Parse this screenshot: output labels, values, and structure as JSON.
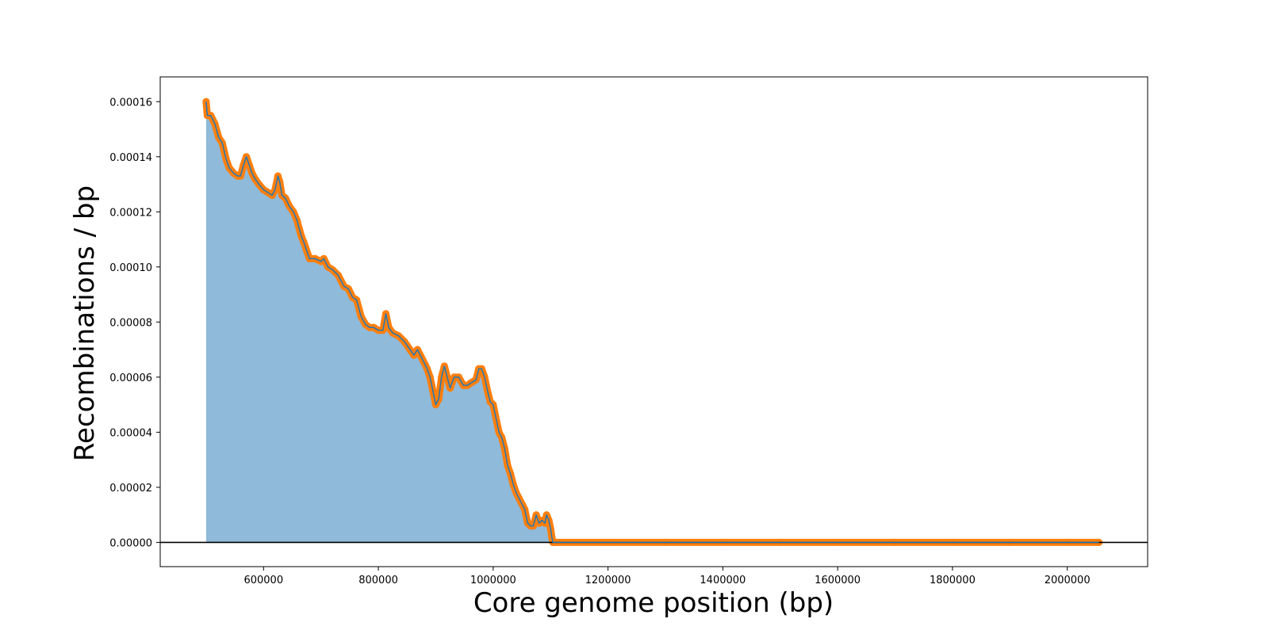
{
  "chart_data": {
    "type": "area",
    "title": "",
    "xlabel": "Core genome position (bp)",
    "ylabel": "Recombinations / bp",
    "xlim": [
      420000,
      2140000
    ],
    "ylim": [
      -8.8e-06,
      0.000169
    ],
    "grid": false,
    "legend": "none",
    "x_ticks": [
      600000,
      800000,
      1000000,
      1200000,
      1400000,
      1600000,
      1800000,
      2000000
    ],
    "x_tick_labels": [
      "600000",
      "800000",
      "1000000",
      "1200000",
      "1400000",
      "1600000",
      "1800000",
      "2000000"
    ],
    "y_ticks": [
      0,
      2e-05,
      4e-05,
      6e-05,
      8e-05,
      0.0001,
      0.00012,
      0.00014,
      0.00016
    ],
    "y_tick_labels": [
      "0.00000",
      "0.00002",
      "0.00004",
      "0.00006",
      "0.00008",
      "0.00010",
      "0.00012",
      "0.00014",
      "0.00016"
    ],
    "series": [
      {
        "x": [
          500000,
          502000,
          508000,
          515000,
          522000,
          528000,
          535000,
          540000,
          548000,
          555000,
          560000,
          565000,
          570000,
          575000,
          580000,
          585000,
          592000,
          600000,
          608000,
          615000,
          620000,
          625000,
          628000,
          632000,
          638000,
          645000,
          652000,
          658000,
          662000,
          666000,
          670000,
          675000,
          680000,
          690000,
          700000,
          705000,
          712000,
          720000,
          730000,
          740000,
          748000,
          755000,
          762000,
          770000,
          778000,
          785000,
          792000,
          800000,
          808000,
          813000,
          818000,
          825000,
          835000,
          845000,
          855000,
          862000,
          868000,
          873000,
          878000,
          885000,
          890000,
          895000,
          900000,
          905000,
          910000,
          915000,
          920000,
          925000,
          932000,
          940000,
          948000,
          955000,
          962000,
          970000,
          975000,
          980000,
          985000,
          990000,
          995000,
          1000000,
          1005000,
          1010000,
          1015000,
          1020000,
          1025000,
          1030000,
          1035000,
          1040000,
          1045000,
          1050000,
          1055000,
          1060000,
          1065000,
          1070000,
          1075000,
          1080000,
          1085000,
          1090000,
          1093000,
          1097000,
          1100000,
          1102000,
          1104000,
          1106000,
          1110000,
          1200000,
          1300000,
          1400000,
          1500000,
          1600000,
          1700000,
          1800000,
          1900000,
          2000000,
          2055000
        ],
        "values": [
          0.00016,
          0.000155,
          0.000155,
          0.000152,
          0.000147,
          0.000145,
          0.000139,
          0.000136,
          0.000134,
          0.000133,
          0.000133,
          0.000137,
          0.00014,
          0.000137,
          0.000134,
          0.000132,
          0.00013,
          0.000128,
          0.000127,
          0.000126,
          0.000128,
          0.000133,
          0.000131,
          0.000126,
          0.000125,
          0.000122,
          0.00012,
          0.000117,
          0.000114,
          0.000111,
          0.000109,
          0.000106,
          0.000103,
          0.000103,
          0.000102,
          0.000103,
          0.0001,
          9.9e-05,
          9.7e-05,
          9.3e-05,
          9.2e-05,
          8.9e-05,
          8.8e-05,
          8.2e-05,
          7.9e-05,
          7.8e-05,
          7.8e-05,
          7.7e-05,
          7.7e-05,
          8.3e-05,
          7.8e-05,
          7.6e-05,
          7.5e-05,
          7.3e-05,
          7e-05,
          6.8e-05,
          7e-05,
          6.8e-05,
          6.6e-05,
          6.3e-05,
          6e-05,
          5.5e-05,
          5e-05,
          5.2e-05,
          6e-05,
          6.4e-05,
          6e-05,
          5.6e-05,
          6e-05,
          6e-05,
          5.7e-05,
          5.7e-05,
          5.8e-05,
          5.9e-05,
          6.3e-05,
          6.3e-05,
          6e-05,
          5.5e-05,
          5.1e-05,
          5e-05,
          4.5e-05,
          4e-05,
          3.8e-05,
          3.4e-05,
          2.8e-05,
          2.5e-05,
          2.1e-05,
          1.8e-05,
          1.6e-05,
          1.4e-05,
          1.2e-05,
          7e-06,
          6e-06,
          6e-06,
          1e-05,
          7e-06,
          8e-06,
          7e-06,
          1e-05,
          8e-06,
          5e-06,
          2e-06,
          0,
          0,
          0,
          0,
          0,
          0,
          0,
          0,
          0,
          0,
          0,
          0,
          0
        ]
      }
    ],
    "colors": {
      "fill": "#8fbad9",
      "line": "#1f77b4",
      "markers": "#ff7f0e",
      "zero_line": "#000000"
    }
  }
}
